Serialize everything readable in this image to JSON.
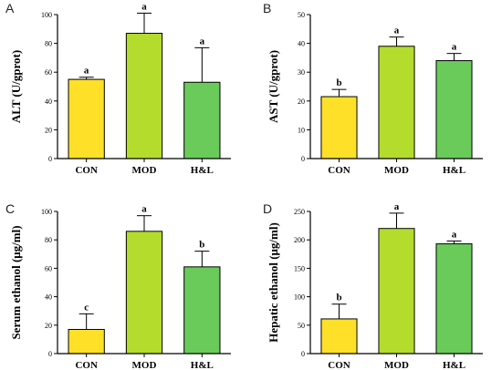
{
  "chart_data": [
    {
      "type": "bar",
      "panel_label": "A",
      "categories": [
        "CON",
        "MOD",
        "H&L"
      ],
      "values": [
        55,
        87,
        53
      ],
      "errors": [
        1.5,
        14,
        24
      ],
      "significance": [
        "a",
        "a",
        "a"
      ],
      "ylabel": "ALT (U/gprot)",
      "ylim": [
        0,
        100
      ],
      "yticks": [
        0,
        20,
        40,
        60,
        80,
        100
      ],
      "colors": [
        "#ffe028",
        "#b4dc2c",
        "#6acb5a"
      ]
    },
    {
      "type": "bar",
      "panel_label": "B",
      "categories": [
        "CON",
        "MOD",
        "H&L"
      ],
      "values": [
        21.5,
        39,
        34
      ],
      "errors": [
        2.5,
        3.2,
        2.5
      ],
      "significance": [
        "b",
        "a",
        "a"
      ],
      "ylabel": "AST (U/gprot)",
      "ylim": [
        0,
        50
      ],
      "yticks": [
        0,
        10,
        20,
        30,
        40,
        50
      ],
      "colors": [
        "#ffe028",
        "#b4dc2c",
        "#6acb5a"
      ]
    },
    {
      "type": "bar",
      "panel_label": "C",
      "categories": [
        "CON",
        "MOD",
        "H&L"
      ],
      "values": [
        17,
        86,
        61
      ],
      "errors": [
        11,
        11,
        11
      ],
      "significance": [
        "c",
        "a",
        "b"
      ],
      "ylabel": "Serum ethanol (μg/ml)",
      "ylim": [
        0,
        100
      ],
      "yticks": [
        0,
        20,
        40,
        60,
        80,
        100
      ],
      "colors": [
        "#ffe028",
        "#b4dc2c",
        "#6acb5a"
      ]
    },
    {
      "type": "bar",
      "panel_label": "D",
      "categories": [
        "CON",
        "MOD",
        "H&L"
      ],
      "values": [
        61,
        220,
        193
      ],
      "errors": [
        26,
        27,
        5
      ],
      "significance": [
        "b",
        "a",
        "a"
      ],
      "ylabel": "Hepatic ethanol (μg/ml)",
      "ylim": [
        0,
        250
      ],
      "yticks": [
        0,
        50,
        100,
        150,
        200,
        250
      ],
      "colors": [
        "#ffe028",
        "#b4dc2c",
        "#6acb5a"
      ]
    }
  ]
}
